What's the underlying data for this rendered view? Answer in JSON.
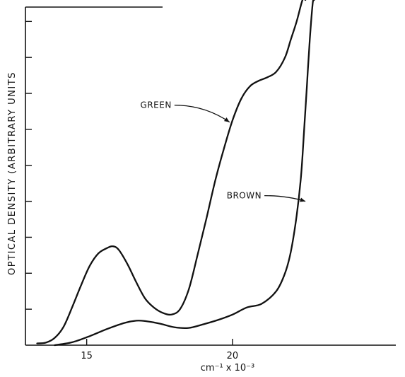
{
  "chart_data": {
    "type": "line",
    "title": "",
    "xlabel": "cm⁻¹ x 10⁻³",
    "ylabel": "OPTICAL DENSITY (ARBITRARY UNITS",
    "x_ticks_labeled": [
      "15",
      "20"
    ],
    "xlim": [
      12.9,
      25.6
    ],
    "ylim": [
      0,
      9.4
    ],
    "y_tick_values": [
      1,
      2,
      3,
      4,
      5,
      6,
      7,
      8,
      9
    ],
    "grid": false,
    "legend": "none",
    "annotations": [
      {
        "text": "GREEN",
        "series": "GREEN",
        "points_to": {
          "x": 19.9,
          "y": 6.2
        }
      },
      {
        "text": "BROWN",
        "series": "BROWN",
        "points_to": {
          "x": 22.5,
          "y": 4.0
        }
      }
    ],
    "series": [
      {
        "name": "GREEN",
        "color": "#111111",
        "x": [
          13.3,
          13.6,
          13.9,
          14.2,
          14.5,
          14.8,
          15.1,
          15.4,
          15.7,
          15.9,
          16.1,
          16.4,
          16.7,
          17.0,
          17.3,
          17.6,
          17.9,
          18.2,
          18.5,
          18.8,
          19.1,
          19.4,
          19.7,
          20.0,
          20.3,
          20.6,
          20.9,
          21.2,
          21.5,
          21.8,
          22.0,
          22.2,
          22.4,
          22.5
        ],
        "y": [
          0.05,
          0.07,
          0.2,
          0.5,
          1.05,
          1.65,
          2.2,
          2.55,
          2.7,
          2.75,
          2.65,
          2.25,
          1.75,
          1.3,
          1.05,
          0.9,
          0.85,
          1.0,
          1.55,
          2.5,
          3.5,
          4.55,
          5.45,
          6.25,
          6.85,
          7.2,
          7.35,
          7.45,
          7.6,
          8.0,
          8.5,
          9.0,
          9.6,
          10.0
        ]
      },
      {
        "name": "BROWN",
        "color": "#111111",
        "x": [
          13.9,
          14.5,
          15.1,
          15.7,
          16.3,
          16.7,
          17.0,
          17.5,
          18.0,
          18.5,
          19.0,
          19.5,
          20.0,
          20.5,
          21.0,
          21.5,
          21.8,
          22.0,
          22.2,
          22.35,
          22.45,
          22.55,
          22.65,
          22.75,
          22.8
        ],
        "y": [
          0.0,
          0.08,
          0.25,
          0.45,
          0.62,
          0.68,
          0.67,
          0.6,
          0.5,
          0.48,
          0.58,
          0.7,
          0.85,
          1.05,
          1.15,
          1.5,
          2.0,
          2.6,
          3.6,
          4.7,
          5.9,
          7.2,
          8.5,
          9.5,
          10.0
        ]
      }
    ]
  }
}
